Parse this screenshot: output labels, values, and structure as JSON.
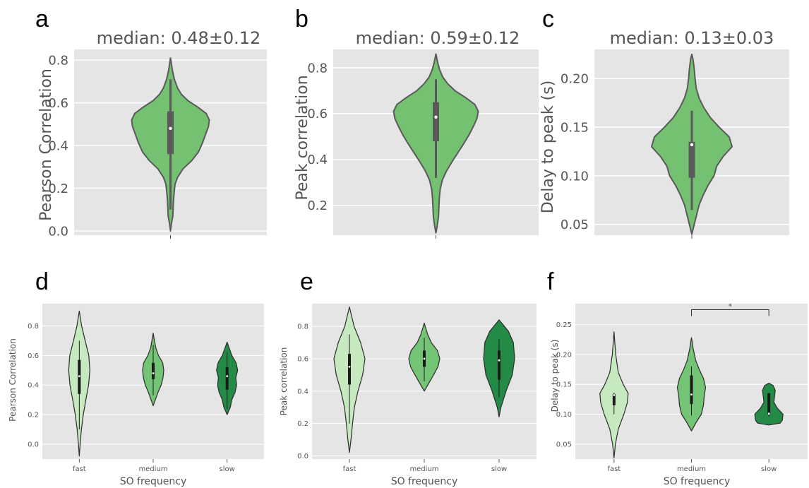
{
  "colors": {
    "axes_background": "#e5e5e5",
    "grid": "#ffffff",
    "single_violin": "#74c172",
    "fast": "#c7e9c0",
    "medium": "#74c476",
    "slow": "#238b45",
    "outline_top": "#5a5a5a",
    "outline_bottom": "#2b2b2b"
  },
  "chart_data": [
    {
      "panel": "a",
      "type": "violin",
      "title": "median: 0.48±0.12",
      "ylabel": "Pearson Correlation",
      "xlabel": "",
      "ylim": [
        -0.02,
        0.85
      ],
      "yticks": [
        0.0,
        0.2,
        0.4,
        0.6,
        0.8
      ],
      "ytick_labels": [
        "0.0",
        "0.2",
        "0.4",
        "0.6",
        "0.8"
      ],
      "grid": true,
      "violins": [
        {
          "range": [
            0.0,
            0.81
          ],
          "whisker": [
            0.1,
            0.71
          ],
          "box": [
            0.36,
            0.56
          ],
          "median": 0.48,
          "profile": [
            [
              0.0,
              0.0
            ],
            [
              0.03,
              0.02
            ],
            [
              0.07,
              0.06
            ],
            [
              0.11,
              0.07
            ],
            [
              0.15,
              0.08
            ],
            [
              0.19,
              0.1
            ],
            [
              0.22,
              0.12
            ],
            [
              0.25,
              0.18
            ],
            [
              0.29,
              0.32
            ],
            [
              0.33,
              0.55
            ],
            [
              0.37,
              0.72
            ],
            [
              0.41,
              0.82
            ],
            [
              0.45,
              0.9
            ],
            [
              0.49,
              0.98
            ],
            [
              0.52,
              1.0
            ],
            [
              0.55,
              0.92
            ],
            [
              0.58,
              0.7
            ],
            [
              0.61,
              0.45
            ],
            [
              0.64,
              0.28
            ],
            [
              0.67,
              0.18
            ],
            [
              0.71,
              0.1
            ],
            [
              0.75,
              0.05
            ],
            [
              0.78,
              0.025
            ],
            [
              0.81,
              0.0
            ]
          ]
        }
      ]
    },
    {
      "panel": "b",
      "type": "violin",
      "title": "median: 0.59±0.12",
      "ylabel": "Peak correlation",
      "xlabel": "",
      "ylim": [
        0.07,
        0.88
      ],
      "yticks": [
        0.2,
        0.4,
        0.6,
        0.8
      ],
      "ytick_labels": [
        "0.2",
        "0.4",
        "0.6",
        "0.8"
      ],
      "grid": true,
      "violins": [
        {
          "range": [
            0.08,
            0.86
          ],
          "whisker": [
            0.32,
            0.75
          ],
          "box": [
            0.48,
            0.65
          ],
          "median": 0.585,
          "profile": [
            [
              0.08,
              0.0
            ],
            [
              0.11,
              0.03
            ],
            [
              0.15,
              0.06
            ],
            [
              0.19,
              0.07
            ],
            [
              0.23,
              0.08
            ],
            [
              0.27,
              0.1
            ],
            [
              0.31,
              0.15
            ],
            [
              0.35,
              0.25
            ],
            [
              0.39,
              0.38
            ],
            [
              0.43,
              0.52
            ],
            [
              0.47,
              0.66
            ],
            [
              0.51,
              0.79
            ],
            [
              0.55,
              0.9
            ],
            [
              0.58,
              0.97
            ],
            [
              0.61,
              1.0
            ],
            [
              0.64,
              0.92
            ],
            [
              0.67,
              0.7
            ],
            [
              0.7,
              0.45
            ],
            [
              0.73,
              0.28
            ],
            [
              0.76,
              0.16
            ],
            [
              0.79,
              0.09
            ],
            [
              0.82,
              0.045
            ],
            [
              0.86,
              0.0
            ]
          ]
        }
      ]
    },
    {
      "panel": "c",
      "type": "violin",
      "title": "median: 0.13±0.03",
      "ylabel": "Delay to peak (s)",
      "xlabel": "",
      "ylim": [
        0.039,
        0.23
      ],
      "yticks": [
        0.05,
        0.1,
        0.15,
        0.2
      ],
      "ytick_labels": [
        "0.05",
        "0.10",
        "0.15",
        "0.20"
      ],
      "grid": true,
      "violins": [
        {
          "range": [
            0.04,
            0.225
          ],
          "whisker": [
            0.065,
            0.167
          ],
          "box": [
            0.098,
            0.135
          ],
          "median": 0.132,
          "profile": [
            [
              0.04,
              0.0
            ],
            [
              0.05,
              0.06
            ],
            [
              0.06,
              0.12
            ],
            [
              0.07,
              0.18
            ],
            [
              0.08,
              0.28
            ],
            [
              0.09,
              0.4
            ],
            [
              0.1,
              0.55
            ],
            [
              0.11,
              0.62
            ],
            [
              0.12,
              0.78
            ],
            [
              0.13,
              1.0
            ],
            [
              0.14,
              0.93
            ],
            [
              0.15,
              0.68
            ],
            [
              0.16,
              0.46
            ],
            [
              0.17,
              0.3
            ],
            [
              0.18,
              0.18
            ],
            [
              0.19,
              0.11
            ],
            [
              0.2,
              0.08
            ],
            [
              0.21,
              0.06
            ],
            [
              0.22,
              0.03
            ],
            [
              0.225,
              0.0
            ]
          ]
        }
      ]
    },
    {
      "panel": "d",
      "type": "violin",
      "title": "",
      "ylabel": "Pearson Correlation",
      "xlabel": "SO frequency",
      "categories": [
        "fast",
        "medium",
        "slow"
      ],
      "ylim": [
        -0.1,
        0.95
      ],
      "yticks": [
        0.0,
        0.2,
        0.4,
        0.6,
        0.8
      ],
      "ytick_labels": [
        "0.0",
        "0.2",
        "0.4",
        "0.6",
        "0.8"
      ],
      "grid": true,
      "violins": [
        {
          "range": [
            -0.08,
            0.9
          ],
          "whisker": [
            0.1,
            0.7
          ],
          "box": [
            0.34,
            0.57
          ],
          "median": 0.46,
          "profile": [
            [
              -0.08,
              0.0
            ],
            [
              0.0,
              0.08
            ],
            [
              0.1,
              0.2
            ],
            [
              0.2,
              0.38
            ],
            [
              0.3,
              0.62
            ],
            [
              0.4,
              0.88
            ],
            [
              0.5,
              1.0
            ],
            [
              0.6,
              0.9
            ],
            [
              0.7,
              0.55
            ],
            [
              0.8,
              0.22
            ],
            [
              0.9,
              0.0
            ]
          ]
        },
        {
          "range": [
            0.26,
            0.75
          ],
          "whisker": [
            0.33,
            0.67
          ],
          "box": [
            0.44,
            0.55
          ],
          "median": 0.48,
          "profile": [
            [
              0.26,
              0.0
            ],
            [
              0.3,
              0.2
            ],
            [
              0.35,
              0.45
            ],
            [
              0.4,
              0.75
            ],
            [
              0.45,
              0.93
            ],
            [
              0.5,
              1.0
            ],
            [
              0.55,
              0.9
            ],
            [
              0.6,
              0.5
            ],
            [
              0.65,
              0.25
            ],
            [
              0.7,
              0.12
            ],
            [
              0.75,
              0.0
            ]
          ]
        },
        {
          "range": [
            0.2,
            0.69
          ],
          "whisker": [
            0.24,
            0.62
          ],
          "box": [
            0.37,
            0.52
          ],
          "median": 0.46,
          "profile": [
            [
              0.2,
              0.0
            ],
            [
              0.25,
              0.3
            ],
            [
              0.3,
              0.45
            ],
            [
              0.35,
              0.75
            ],
            [
              0.4,
              0.9
            ],
            [
              0.45,
              0.82
            ],
            [
              0.5,
              1.0
            ],
            [
              0.55,
              0.85
            ],
            [
              0.6,
              0.45
            ],
            [
              0.65,
              0.2
            ],
            [
              0.69,
              0.0
            ]
          ]
        }
      ]
    },
    {
      "panel": "e",
      "type": "violin",
      "title": "",
      "ylabel": "Peak correlation",
      "xlabel": "SO frequency",
      "categories": [
        "fast",
        "medium",
        "slow"
      ],
      "ylim": [
        -0.02,
        0.94
      ],
      "yticks": [
        0.0,
        0.2,
        0.4,
        0.6,
        0.8
      ],
      "ytick_labels": [
        "0.0",
        "0.2",
        "0.4",
        "0.6",
        "0.8"
      ],
      "grid": true,
      "violins": [
        {
          "range": [
            0.02,
            0.92
          ],
          "whisker": [
            0.2,
            0.75
          ],
          "box": [
            0.44,
            0.63
          ],
          "median": 0.55,
          "profile": [
            [
              0.02,
              0.0
            ],
            [
              0.1,
              0.1
            ],
            [
              0.2,
              0.2
            ],
            [
              0.3,
              0.32
            ],
            [
              0.4,
              0.55
            ],
            [
              0.5,
              0.85
            ],
            [
              0.6,
              1.0
            ],
            [
              0.7,
              0.72
            ],
            [
              0.8,
              0.3
            ],
            [
              0.92,
              0.0
            ]
          ]
        },
        {
          "range": [
            0.4,
            0.82
          ],
          "whisker": [
            0.46,
            0.73
          ],
          "box": [
            0.55,
            0.65
          ],
          "median": 0.6,
          "profile": [
            [
              0.4,
              0.0
            ],
            [
              0.45,
              0.3
            ],
            [
              0.5,
              0.6
            ],
            [
              0.55,
              0.88
            ],
            [
              0.6,
              1.0
            ],
            [
              0.65,
              0.85
            ],
            [
              0.7,
              0.45
            ],
            [
              0.75,
              0.22
            ],
            [
              0.82,
              0.0
            ]
          ]
        },
        {
          "range": [
            0.24,
            0.84
          ],
          "whisker": [
            0.36,
            0.72
          ],
          "box": [
            0.47,
            0.65
          ],
          "median": 0.59,
          "profile": [
            [
              0.24,
              0.0
            ],
            [
              0.3,
              0.12
            ],
            [
              0.4,
              0.45
            ],
            [
              0.5,
              0.85
            ],
            [
              0.6,
              1.0
            ],
            [
              0.7,
              0.92
            ],
            [
              0.77,
              0.6
            ],
            [
              0.84,
              0.0
            ]
          ]
        }
      ]
    },
    {
      "panel": "f",
      "type": "violin",
      "title": "",
      "ylabel": "Delay to peak (s)",
      "xlabel": "SO frequency",
      "categories": [
        "fast",
        "medium",
        "slow"
      ],
      "ylim": [
        0.025,
        0.285
      ],
      "yticks": [
        0.05,
        0.1,
        0.15,
        0.2,
        0.25
      ],
      "ytick_labels": [
        "0.05",
        "0.10",
        "0.15",
        "0.20",
        "0.25"
      ],
      "grid": true,
      "significance": {
        "from": "medium",
        "to": "slow",
        "label": "*",
        "y": 0.275
      },
      "violins": [
        {
          "range": [
            0.027,
            0.238
          ],
          "whisker": [
            0.1,
            0.136
          ],
          "box": [
            0.115,
            0.134
          ],
          "median": 0.132,
          "profile": [
            [
              0.027,
              0.0
            ],
            [
              0.05,
              0.1
            ],
            [
              0.075,
              0.3
            ],
            [
              0.1,
              0.7
            ],
            [
              0.12,
              0.95
            ],
            [
              0.135,
              1.0
            ],
            [
              0.15,
              0.65
            ],
            [
              0.17,
              0.3
            ],
            [
              0.2,
              0.12
            ],
            [
              0.238,
              0.0
            ]
          ]
        },
        {
          "range": [
            0.072,
            0.228
          ],
          "whisker": [
            0.098,
            0.18
          ],
          "box": [
            0.117,
            0.165
          ],
          "median": 0.133,
          "profile": [
            [
              0.072,
              0.0
            ],
            [
              0.085,
              0.3
            ],
            [
              0.1,
              0.7
            ],
            [
              0.115,
              0.85
            ],
            [
              0.13,
              0.9
            ],
            [
              0.145,
              1.0
            ],
            [
              0.16,
              0.85
            ],
            [
              0.175,
              0.55
            ],
            [
              0.19,
              0.3
            ],
            [
              0.21,
              0.12
            ],
            [
              0.228,
              0.0
            ]
          ]
        },
        {
          "range": [
            0.082,
            0.152
          ],
          "whisker": [
            0.096,
            0.136
          ],
          "box": [
            0.1,
            0.135
          ],
          "median": 0.101,
          "profile": [
            [
              0.082,
              0.0
            ],
            [
              0.085,
              0.8
            ],
            [
              0.09,
              0.95
            ],
            [
              0.1,
              1.0
            ],
            [
              0.11,
              0.6
            ],
            [
              0.12,
              0.35
            ],
            [
              0.13,
              0.4
            ],
            [
              0.14,
              0.45
            ],
            [
              0.148,
              0.3
            ],
            [
              0.152,
              0.0
            ]
          ]
        }
      ]
    }
  ]
}
